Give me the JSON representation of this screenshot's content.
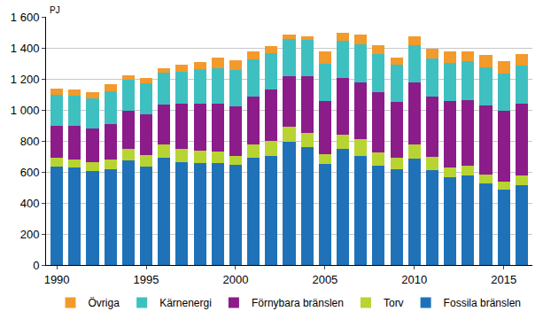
{
  "chart_data": {
    "type": "bar",
    "stacked": true,
    "ylabel": "PJ",
    "categories": [
      "1990",
      null,
      null,
      null,
      null,
      "1995",
      null,
      null,
      null,
      null,
      "2000",
      null,
      null,
      null,
      null,
      "2005",
      null,
      null,
      null,
      null,
      "2010",
      null,
      null,
      null,
      null,
      "2015",
      null
    ],
    "series": [
      {
        "name": "Fossila bränslen",
        "color": "#1f72b8",
        "values": [
          635,
          630,
          605,
          615,
          675,
          635,
          690,
          665,
          655,
          660,
          645,
          690,
          705,
          795,
          760,
          650,
          750,
          705,
          640,
          620,
          685,
          610,
          565,
          580,
          525,
          485,
          515
        ]
      },
      {
        "name": "Torv",
        "color": "#b8d432",
        "values": [
          55,
          50,
          60,
          65,
          75,
          75,
          85,
          85,
          80,
          70,
          60,
          85,
          95,
          95,
          90,
          65,
          90,
          105,
          85,
          70,
          95,
          85,
          65,
          60,
          60,
          55,
          65
        ]
      },
      {
        "name": "Förnybara bränslen",
        "color": "#8c1c8a",
        "values": [
          210,
          215,
          215,
          230,
          245,
          260,
          260,
          290,
          305,
          310,
          320,
          310,
          330,
          330,
          365,
          340,
          365,
          370,
          390,
          360,
          400,
          390,
          430,
          425,
          445,
          455,
          460
        ]
      },
      {
        "name": "Kärnenergi",
        "color": "#3fc0c0",
        "values": [
          195,
          195,
          195,
          210,
          200,
          200,
          205,
          205,
          225,
          230,
          235,
          240,
          235,
          240,
          235,
          240,
          240,
          245,
          245,
          240,
          240,
          245,
          245,
          250,
          245,
          240,
          245
        ]
      },
      {
        "name": "Övriga",
        "color": "#f39a2c",
        "values": [
          45,
          40,
          40,
          45,
          30,
          35,
          30,
          45,
          45,
          65,
          60,
          50,
          45,
          25,
          25,
          80,
          55,
          60,
          55,
          45,
          55,
          65,
          75,
          65,
          80,
          80,
          75
        ]
      }
    ],
    "ylim": [
      0,
      1600
    ],
    "yticks": [
      0,
      200,
      400,
      600,
      800,
      {
        "value": 1000,
        "label": "1 000"
      },
      {
        "value": 1200,
        "label": "1 200"
      },
      {
        "value": 1400,
        "label": "1 400"
      },
      {
        "value": 1600,
        "label": "1 600"
      }
    ],
    "grid": true,
    "legend": "bottom"
  }
}
